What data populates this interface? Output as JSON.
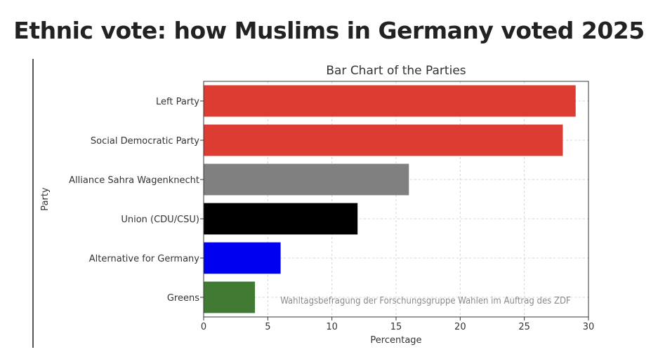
{
  "headline": "Ethnic vote: how Muslims in Germany voted 2025",
  "source_note": "Wahltagsbefragung der Forschungsgruppe Wahlen im Auftrag des ZDF",
  "chart_data": {
    "type": "bar",
    "orientation": "horizontal",
    "title": "Bar Chart of the Parties",
    "xlabel": "Percentage",
    "ylabel": "Party",
    "xlim": [
      0,
      30
    ],
    "xticks": [
      0,
      5,
      10,
      15,
      20,
      25,
      30
    ],
    "grid": true,
    "categories": [
      "Left Party",
      "Social Democratic Party",
      "Alliance Sahra Wagenknecht",
      "Union (CDU/CSU)",
      "Alternative for Germany",
      "Greens"
    ],
    "values": [
      29,
      28,
      16,
      12,
      6,
      4
    ],
    "colors": [
      "#dc3c32",
      "#dc3c32",
      "#808080",
      "#000000",
      "#0000f0",
      "#417a32"
    ]
  }
}
